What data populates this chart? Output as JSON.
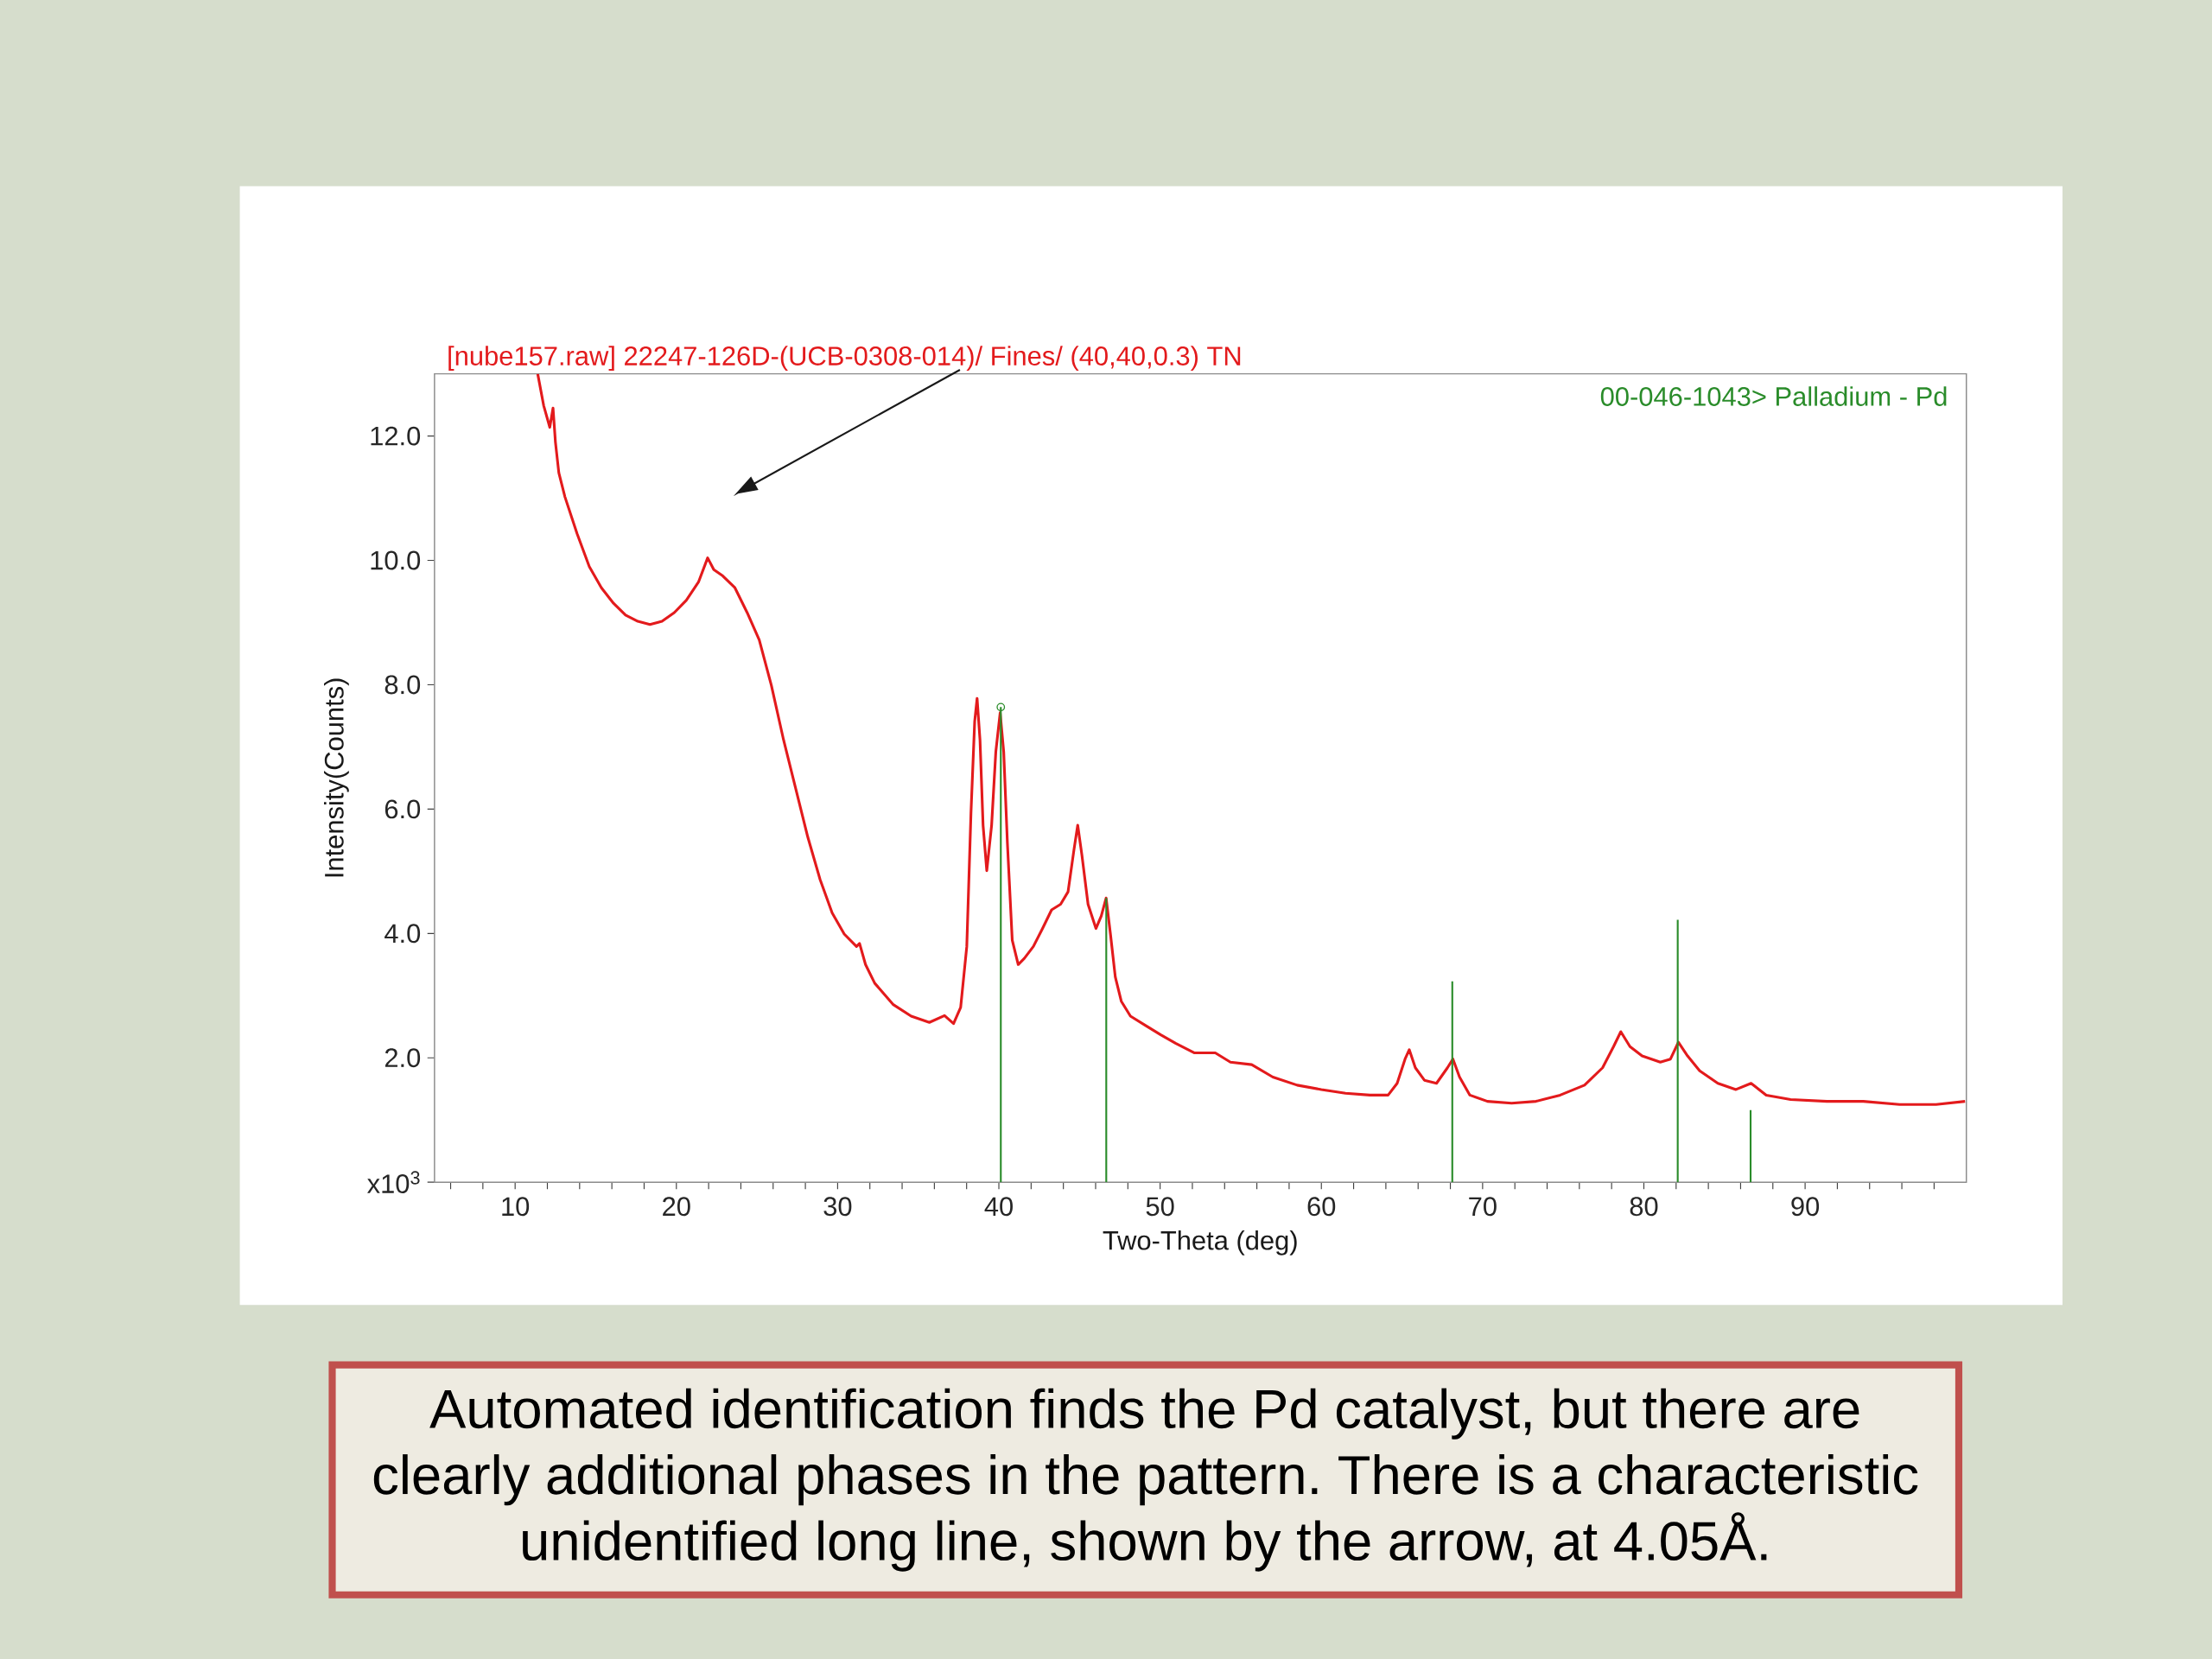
{
  "chart_data": {
    "type": "line",
    "xlabel": "Two-Theta (deg)",
    "ylabel": "Intensity(Counts)",
    "xlim": [
      5,
      100
    ],
    "ylim": [
      0,
      13
    ],
    "xticks": [
      {
        "value": 6,
        "label": null
      },
      {
        "value": 8,
        "label": null
      },
      10,
      {
        "value": 12,
        "label": null
      },
      {
        "value": 14,
        "label": null
      },
      {
        "value": 16,
        "label": null
      },
      {
        "value": 18,
        "label": null
      },
      20,
      {
        "value": 22,
        "label": null
      },
      {
        "value": 24,
        "label": null
      },
      {
        "value": 26,
        "label": null
      },
      {
        "value": 28,
        "label": null
      },
      30,
      {
        "value": 32,
        "label": null
      },
      {
        "value": 34,
        "label": null
      },
      {
        "value": 36,
        "label": null
      },
      {
        "value": 38,
        "label": null
      },
      40,
      {
        "value": 42,
        "label": null
      },
      {
        "value": 44,
        "label": null
      },
      {
        "value": 46,
        "label": null
      },
      {
        "value": 48,
        "label": null
      },
      50,
      {
        "value": 52,
        "label": null
      },
      {
        "value": 54,
        "label": null
      },
      {
        "value": 56,
        "label": null
      },
      {
        "value": 58,
        "label": null
      },
      60,
      {
        "value": 62,
        "label": null
      },
      {
        "value": 64,
        "label": null
      },
      {
        "value": 66,
        "label": null
      },
      {
        "value": 68,
        "label": null
      },
      70,
      {
        "value": 72,
        "label": null
      },
      {
        "value": 74,
        "label": null
      },
      {
        "value": 76,
        "label": null
      },
      {
        "value": 78,
        "label": null
      },
      80,
      {
        "value": 82,
        "label": null
      },
      {
        "value": 84,
        "label": null
      },
      {
        "value": 86,
        "label": null
      },
      {
        "value": 88,
        "label": null
      },
      90,
      {
        "value": 92,
        "label": null
      },
      {
        "value": 94,
        "label": null
      },
      {
        "value": 96,
        "label": null
      },
      {
        "value": 98,
        "label": null
      }
    ],
    "yticks": [
      {
        "value": 0,
        "label": "x10$^{3}$"
      },
      {
        "value": 2,
        "label": "2.0"
      },
      {
        "value": 4,
        "label": "4.0"
      },
      {
        "value": 6,
        "label": "6.0"
      },
      {
        "value": 8,
        "label": "8.0"
      },
      {
        "value": 10,
        "label": "10.0"
      },
      {
        "value": 12,
        "label": "12.0"
      }
    ],
    "series": [
      {
        "name": "[nube157.raw] 22247-126D-(UCB-0308-014)/ Fines/ (40,40,0.3) TN",
        "color": "#e31a1c",
        "x": [
          11.4,
          11.77,
          12.15,
          12.35,
          12.5,
          12.71,
          13.09,
          13.84,
          14.6,
          15.35,
          16.1,
          16.85,
          17.61,
          18.36,
          19.11,
          19.87,
          20.62,
          21.37,
          21.94,
          22.32,
          22.88,
          23.63,
          24.39,
          25.14,
          25.89,
          26.65,
          27.4,
          28.15,
          28.91,
          29.66,
          30.41,
          31.17,
          31.36,
          31.73,
          32.3,
          33.43,
          34.56,
          35.69,
          36.63,
          37.19,
          37.63,
          38.01,
          38.27,
          38.5,
          38.65,
          38.83,
          39.02,
          39.25,
          39.55,
          39.81,
          40.08,
          40.3,
          40.53,
          40.83,
          41.2,
          41.58,
          42.14,
          42.71,
          43.27,
          43.83,
          44.29,
          44.66,
          44.89,
          45.15,
          45.53,
          46.02,
          46.35,
          46.65,
          46.92,
          47.22,
          47.59,
          48.16,
          49.1,
          50.04,
          50.98,
          52.11,
          53.42,
          54.36,
          55.68,
          56.99,
          58.5,
          60.0,
          61.5,
          63.01,
          64.14,
          64.7,
          65.19,
          65.45,
          65.83,
          66.39,
          67.14,
          67.82,
          68.16,
          68.57,
          69.21,
          70.3,
          71.8,
          73.31,
          74.81,
          76.32,
          77.44,
          78.12,
          78.57,
          79.14,
          79.89,
          81.02,
          81.65,
          82.14,
          82.71,
          83.46,
          84.59,
          85.71,
          86.65,
          87.59,
          89.1,
          91.35,
          93.61,
          95.86,
          98.12,
          99.92
        ],
        "values": [
          13.0,
          12.49,
          12.14,
          12.45,
          11.9,
          11.41,
          11.02,
          10.43,
          9.9,
          9.56,
          9.31,
          9.12,
          9.02,
          8.97,
          9.02,
          9.16,
          9.36,
          9.65,
          10.04,
          9.85,
          9.75,
          9.56,
          9.16,
          8.72,
          7.99,
          7.11,
          6.33,
          5.55,
          4.87,
          4.33,
          3.99,
          3.79,
          3.84,
          3.5,
          3.2,
          2.86,
          2.67,
          2.57,
          2.68,
          2.55,
          2.81,
          3.79,
          5.94,
          7.41,
          7.78,
          7.11,
          5.74,
          5.01,
          5.74,
          6.92,
          7.55,
          6.92,
          5.45,
          3.89,
          3.5,
          3.6,
          3.79,
          4.08,
          4.38,
          4.47,
          4.67,
          5.35,
          5.74,
          5.26,
          4.47,
          4.08,
          4.28,
          4.57,
          3.99,
          3.3,
          2.91,
          2.67,
          2.52,
          2.37,
          2.23,
          2.08,
          2.08,
          1.93,
          1.89,
          1.69,
          1.56,
          1.49,
          1.43,
          1.4,
          1.4,
          1.59,
          1.98,
          2.13,
          1.84,
          1.64,
          1.59,
          1.84,
          1.98,
          1.69,
          1.4,
          1.3,
          1.27,
          1.3,
          1.4,
          1.56,
          1.84,
          2.18,
          2.42,
          2.18,
          2.03,
          1.93,
          1.98,
          2.25,
          2.03,
          1.79,
          1.59,
          1.49,
          1.59,
          1.4,
          1.33,
          1.3,
          1.3,
          1.25,
          1.25,
          1.3
        ]
      },
      {
        "name": "00-046-1043> Palladium - Pd",
        "color": "#2a8c2a",
        "type": "bar",
        "x": [
          40.12,
          46.66,
          68.12,
          82.1,
          86.62
        ],
        "values": [
          7.64,
          4.57,
          3.23,
          4.22,
          1.16
        ]
      },
      {
        "color": "#2a8c2a",
        "type": "scatter",
        "marker": "circle",
        "x": [
          40.12
        ],
        "values": [
          7.64
        ]
      }
    ],
    "annotations": [
      "Automated identification finds the Pd catalyst, but there are clearly additional phases in the pattern. There is a characteristic unidentified long line, shown by the arrow, at 4.05Å."
    ]
  }
}
